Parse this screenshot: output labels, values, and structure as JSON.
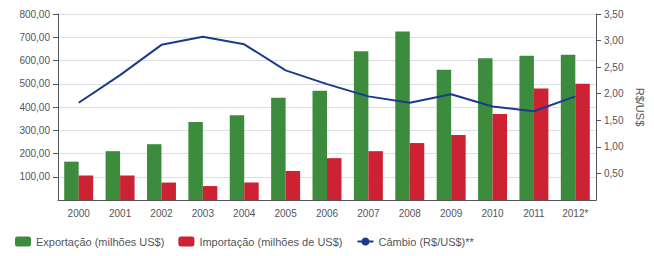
{
  "chart_data": {
    "type": "bar",
    "categories": [
      "2000",
      "2001",
      "2002",
      "2003",
      "2004",
      "2005",
      "2006",
      "2007",
      "2008",
      "2009",
      "2010",
      "2011",
      "2012*"
    ],
    "series": [
      {
        "name": "Exportação (milhões US$)",
        "type": "bar",
        "color": "#3d8c3d",
        "values": [
          165,
          210,
          240,
          335,
          365,
          440,
          470,
          640,
          725,
          560,
          610,
          620,
          625
        ]
      },
      {
        "name": "Importação (milhões de US$)",
        "type": "bar",
        "color": "#cc2233",
        "values": [
          105,
          105,
          75,
          60,
          75,
          125,
          180,
          210,
          245,
          280,
          370,
          480,
          500
        ]
      },
      {
        "name": "Câmbio (R$/US$)**",
        "type": "line",
        "color": "#1a3a8a",
        "axis": "y2",
        "values": [
          1.83,
          2.35,
          2.92,
          3.07,
          2.93,
          2.44,
          2.18,
          1.95,
          1.83,
          1.99,
          1.76,
          1.67,
          1.95
        ]
      }
    ],
    "ylim": [
      0,
      800
    ],
    "yticks": [
      {
        "value": 100,
        "label": "100,00"
      },
      {
        "value": 200,
        "label": "200,00"
      },
      {
        "value": 300,
        "label": "300,00"
      },
      {
        "value": 400,
        "label": "400,00"
      },
      {
        "value": 500,
        "label": "500,00"
      },
      {
        "value": 600,
        "label": "600,00"
      },
      {
        "value": 700,
        "label": "700,00"
      },
      {
        "value": 800,
        "label": "800,00"
      }
    ],
    "y2label": "R$/US$",
    "y2lim": [
      0,
      3.5
    ],
    "y2ticks": [
      {
        "value": 0.5,
        "label": "0,50"
      },
      {
        "value": 1.0,
        "label": "1,00"
      },
      {
        "value": 1.5,
        "label": "1,50"
      },
      {
        "value": 2.0,
        "label": "2,00"
      },
      {
        "value": 2.5,
        "label": "2,50"
      },
      {
        "value": 3.0,
        "label": "3,00"
      },
      {
        "value": 3.5,
        "label": "3,50"
      }
    ],
    "grid": true,
    "legend": "bottom"
  }
}
